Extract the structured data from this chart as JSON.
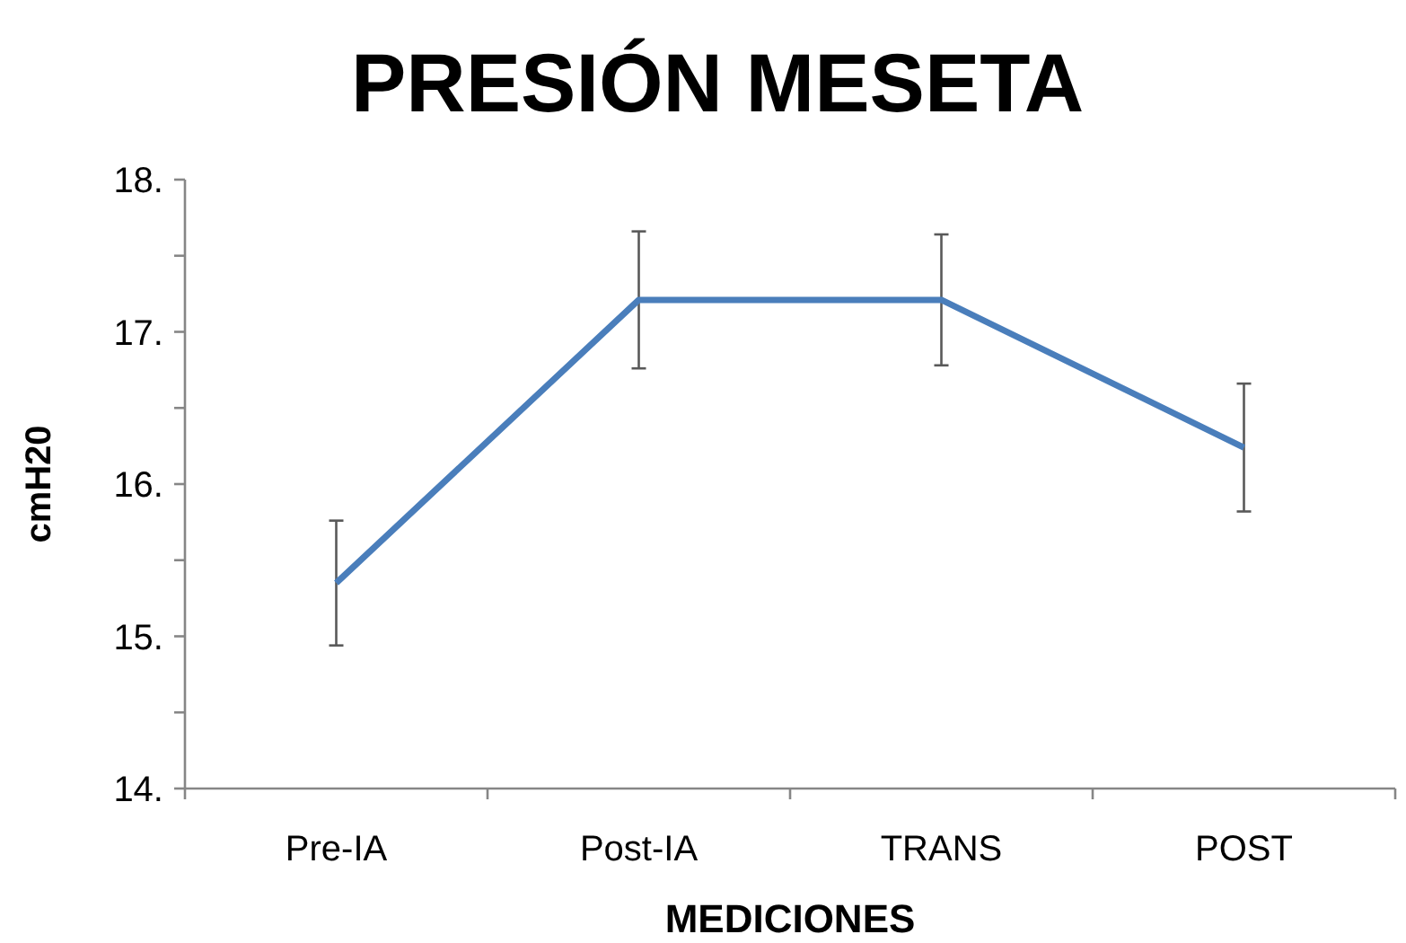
{
  "chart_data": {
    "type": "line",
    "title": "PRESIÓN MESETA",
    "xlabel": "MEDICIONES",
    "ylabel": "cmH20",
    "categories": [
      "Pre-IA",
      "Post-IA",
      "TRANS",
      "POST"
    ],
    "series": [
      {
        "color": "#4a7ebb",
        "values": [
          15.35,
          17.21,
          17.21,
          16.24
        ],
        "errors": [
          0.41,
          0.45,
          0.43,
          0.42
        ]
      }
    ],
    "ylim": [
      14,
      18
    ],
    "yticks": [
      {
        "value": 14,
        "label": "14."
      },
      {
        "value": 14.5,
        "label": null
      },
      {
        "value": 15,
        "label": "15."
      },
      {
        "value": 15.5,
        "label": null
      },
      {
        "value": 16,
        "label": "16."
      },
      {
        "value": 16.5,
        "label": null
      },
      {
        "value": 17,
        "label": "17."
      },
      {
        "value": 17.5,
        "label": null
      },
      {
        "value": 18,
        "label": "18."
      }
    ],
    "marker": "none",
    "line_style": "solid"
  }
}
